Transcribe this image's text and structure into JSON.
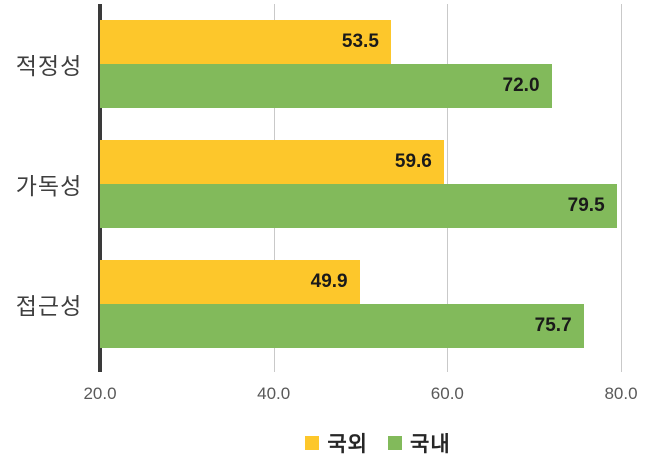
{
  "chart_data": {
    "type": "bar",
    "orientation": "horizontal",
    "title": "",
    "xlabel": "",
    "ylabel": "",
    "categories": [
      "적정성",
      "가독성",
      "접근성"
    ],
    "series": [
      {
        "name": "국외",
        "color": "#FDC72B",
        "values": [
          53.5,
          59.6,
          49.9
        ]
      },
      {
        "name": "국내",
        "color": "#82BA5B",
        "values": [
          72.0,
          79.5,
          75.7
        ]
      }
    ],
    "xlim": [
      20,
      80
    ],
    "xticks": [
      {
        "value": 20,
        "label": "20.0"
      },
      {
        "value": 40,
        "label": "40.0"
      },
      {
        "value": 60,
        "label": "60.0"
      },
      {
        "value": 80,
        "label": "80.0"
      }
    ],
    "grid": true,
    "legend": {
      "position": "bottom"
    },
    "value_decimals": 1,
    "colors": {
      "axis": "#3A3A3A",
      "gridline": "#C9C9C9",
      "value_label": "#1A1A1A",
      "tick_label": "#595959",
      "category_label": "#3F3F3F",
      "background": "#FFFFFF"
    }
  }
}
